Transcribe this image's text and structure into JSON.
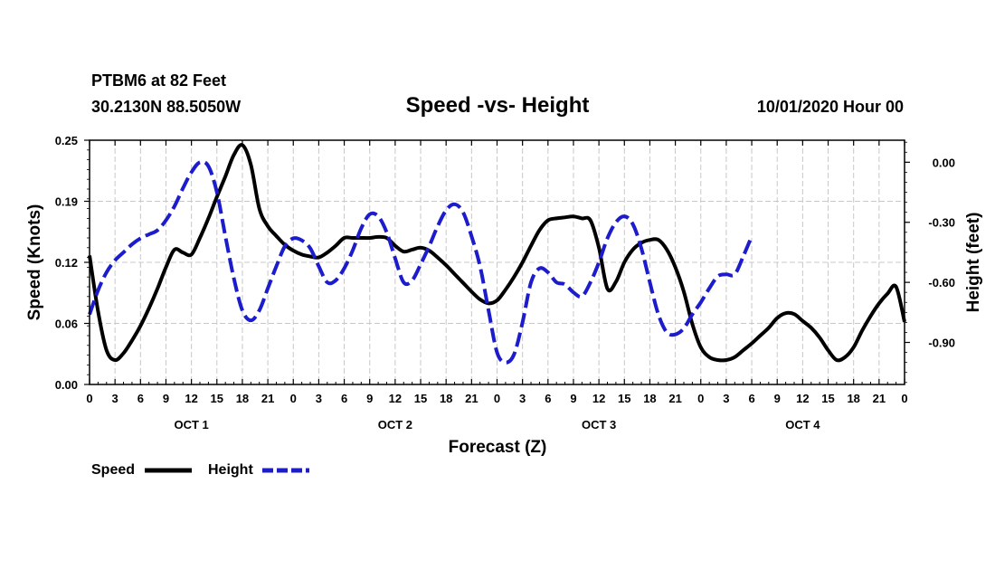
{
  "header": {
    "station": "PTBM6 at 82 Feet",
    "coords": "30.2130N 88.5050W",
    "title": "Speed -vs- Height",
    "date": "10/01/2020 Hour 00"
  },
  "chart_data": {
    "type": "line",
    "title": "Speed -vs- Height",
    "xlabel": "Forecast (Z)",
    "ylabel": "Speed (Knots)",
    "y2label": "Height (feet)",
    "xlim": [
      0,
      96
    ],
    "ylim": [
      0,
      0.25
    ],
    "y2lim": [
      -1.11,
      0.11
    ],
    "x_tick_labels": [
      "0",
      "3",
      "6",
      "9",
      "12",
      "15",
      "18",
      "21",
      "0",
      "3",
      "6",
      "9",
      "12",
      "15",
      "18",
      "21",
      "0",
      "3",
      "6",
      "9",
      "12",
      "15",
      "18",
      "21",
      "0",
      "3",
      "6",
      "9",
      "12",
      "15",
      "18",
      "21",
      "0"
    ],
    "day_labels": [
      {
        "label": "OCT 1",
        "x": 12
      },
      {
        "label": "OCT 2",
        "x": 36
      },
      {
        "label": "OCT 3",
        "x": 60
      },
      {
        "label": "OCT 4",
        "x": 84
      }
    ],
    "y_ticks": [
      "0.00",
      "0.06",
      "0.12",
      "0.19",
      "0.25"
    ],
    "y_tick_values": [
      0,
      0.0625,
      0.125,
      0.1875,
      0.25
    ],
    "y2_ticks": [
      "0.00",
      "-0.30",
      "-0.60",
      "-0.90"
    ],
    "y2_tick_values": [
      0,
      -0.3,
      -0.6,
      -0.9
    ],
    "grid": true,
    "series": [
      {
        "name": "Speed",
        "axis": "left",
        "color": "#000000",
        "style": "solid",
        "points": [
          [
            0,
            0.132
          ],
          [
            1,
            0.075
          ],
          [
            2,
            0.035
          ],
          [
            3,
            0.025
          ],
          [
            4,
            0.032
          ],
          [
            5,
            0.045
          ],
          [
            6,
            0.06
          ],
          [
            7,
            0.078
          ],
          [
            8,
            0.098
          ],
          [
            9,
            0.12
          ],
          [
            10,
            0.138
          ],
          [
            11,
            0.135
          ],
          [
            12,
            0.133
          ],
          [
            13,
            0.15
          ],
          [
            14,
            0.17
          ],
          [
            15,
            0.192
          ],
          [
            16,
            0.213
          ],
          [
            17,
            0.235
          ],
          [
            18,
            0.245
          ],
          [
            19,
            0.225
          ],
          [
            20,
            0.18
          ],
          [
            21,
            0.162
          ],
          [
            22,
            0.152
          ],
          [
            23,
            0.143
          ],
          [
            24,
            0.137
          ],
          [
            25,
            0.133
          ],
          [
            26,
            0.131
          ],
          [
            27,
            0.13
          ],
          [
            28,
            0.135
          ],
          [
            29,
            0.142
          ],
          [
            30,
            0.15
          ],
          [
            31,
            0.15
          ],
          [
            32,
            0.15
          ],
          [
            33,
            0.15
          ],
          [
            34,
            0.151
          ],
          [
            35,
            0.15
          ],
          [
            36,
            0.142
          ],
          [
            37,
            0.136
          ],
          [
            38,
            0.138
          ],
          [
            39,
            0.14
          ],
          [
            40,
            0.137
          ],
          [
            41,
            0.13
          ],
          [
            42,
            0.122
          ],
          [
            43,
            0.113
          ],
          [
            44,
            0.104
          ],
          [
            45,
            0.095
          ],
          [
            46,
            0.087
          ],
          [
            47,
            0.083
          ],
          [
            48,
            0.086
          ],
          [
            49,
            0.097
          ],
          [
            50,
            0.11
          ],
          [
            51,
            0.125
          ],
          [
            52,
            0.142
          ],
          [
            53,
            0.158
          ],
          [
            54,
            0.168
          ],
          [
            55,
            0.17
          ],
          [
            56,
            0.171
          ],
          [
            57,
            0.172
          ],
          [
            58,
            0.17
          ],
          [
            59,
            0.168
          ],
          [
            60,
            0.14
          ],
          [
            61,
            0.098
          ],
          [
            62,
            0.105
          ],
          [
            63,
            0.125
          ],
          [
            64,
            0.138
          ],
          [
            65,
            0.145
          ],
          [
            66,
            0.148
          ],
          [
            67,
            0.148
          ],
          [
            68,
            0.138
          ],
          [
            69,
            0.12
          ],
          [
            70,
            0.095
          ],
          [
            71,
            0.062
          ],
          [
            72,
            0.038
          ],
          [
            73,
            0.028
          ],
          [
            74,
            0.025
          ],
          [
            75,
            0.025
          ],
          [
            76,
            0.028
          ],
          [
            77,
            0.035
          ],
          [
            78,
            0.042
          ],
          [
            79,
            0.05
          ],
          [
            80,
            0.058
          ],
          [
            81,
            0.068
          ],
          [
            82,
            0.073
          ],
          [
            83,
            0.072
          ],
          [
            84,
            0.065
          ],
          [
            85,
            0.058
          ],
          [
            86,
            0.048
          ],
          [
            87,
            0.035
          ],
          [
            88,
            0.025
          ],
          [
            89,
            0.028
          ],
          [
            90,
            0.038
          ],
          [
            91,
            0.055
          ],
          [
            92,
            0.07
          ],
          [
            93,
            0.083
          ],
          [
            94,
            0.093
          ],
          [
            95,
            0.1
          ],
          [
            96,
            0.064
          ]
        ]
      },
      {
        "name": "Height",
        "axis": "right",
        "color": "#1c1ccc",
        "style": "dashed",
        "points": [
          [
            0,
            -0.76
          ],
          [
            1,
            -0.64
          ],
          [
            2,
            -0.55
          ],
          [
            3,
            -0.49
          ],
          [
            4,
            -0.45
          ],
          [
            5,
            -0.41
          ],
          [
            6,
            -0.38
          ],
          [
            7,
            -0.36
          ],
          [
            8,
            -0.34
          ],
          [
            9,
            -0.29
          ],
          [
            10,
            -0.22
          ],
          [
            11,
            -0.13
          ],
          [
            12,
            -0.05
          ],
          [
            13,
            0.0
          ],
          [
            14,
            -0.02
          ],
          [
            15,
            -0.15
          ],
          [
            16,
            -0.37
          ],
          [
            17,
            -0.58
          ],
          [
            18,
            -0.74
          ],
          [
            19,
            -0.79
          ],
          [
            20,
            -0.74
          ],
          [
            21,
            -0.63
          ],
          [
            22,
            -0.52
          ],
          [
            23,
            -0.42
          ],
          [
            24,
            -0.38
          ],
          [
            25,
            -0.39
          ],
          [
            26,
            -0.43
          ],
          [
            27,
            -0.52
          ],
          [
            28,
            -0.6
          ],
          [
            29,
            -0.59
          ],
          [
            30,
            -0.53
          ],
          [
            31,
            -0.44
          ],
          [
            32,
            -0.33
          ],
          [
            33,
            -0.26
          ],
          [
            34,
            -0.27
          ],
          [
            35,
            -0.35
          ],
          [
            36,
            -0.48
          ],
          [
            37,
            -0.6
          ],
          [
            38,
            -0.59
          ],
          [
            39,
            -0.51
          ],
          [
            40,
            -0.42
          ],
          [
            41,
            -0.32
          ],
          [
            42,
            -0.24
          ],
          [
            43,
            -0.21
          ],
          [
            44,
            -0.25
          ],
          [
            45,
            -0.37
          ],
          [
            46,
            -0.52
          ],
          [
            47,
            -0.74
          ],
          [
            48,
            -0.95
          ],
          [
            49,
            -1.0
          ],
          [
            50,
            -0.96
          ],
          [
            51,
            -0.8
          ],
          [
            52,
            -0.6
          ],
          [
            53,
            -0.53
          ],
          [
            54,
            -0.55
          ],
          [
            55,
            -0.6
          ],
          [
            56,
            -0.61
          ],
          [
            57,
            -0.65
          ],
          [
            58,
            -0.67
          ],
          [
            59,
            -0.6
          ],
          [
            60,
            -0.5
          ],
          [
            61,
            -0.38
          ],
          [
            62,
            -0.3
          ],
          [
            63,
            -0.27
          ],
          [
            64,
            -0.31
          ],
          [
            65,
            -0.43
          ],
          [
            66,
            -0.6
          ],
          [
            67,
            -0.76
          ],
          [
            68,
            -0.85
          ],
          [
            69,
            -0.86
          ],
          [
            70,
            -0.83
          ],
          [
            71,
            -0.76
          ],
          [
            72,
            -0.7
          ],
          [
            73,
            -0.63
          ],
          [
            74,
            -0.57
          ],
          [
            75,
            -0.56
          ],
          [
            76,
            -0.56
          ],
          [
            77,
            -0.47
          ],
          [
            78,
            -0.37
          ]
        ]
      }
    ]
  },
  "legend": {
    "speed_label": "Speed",
    "height_label": "Height"
  }
}
